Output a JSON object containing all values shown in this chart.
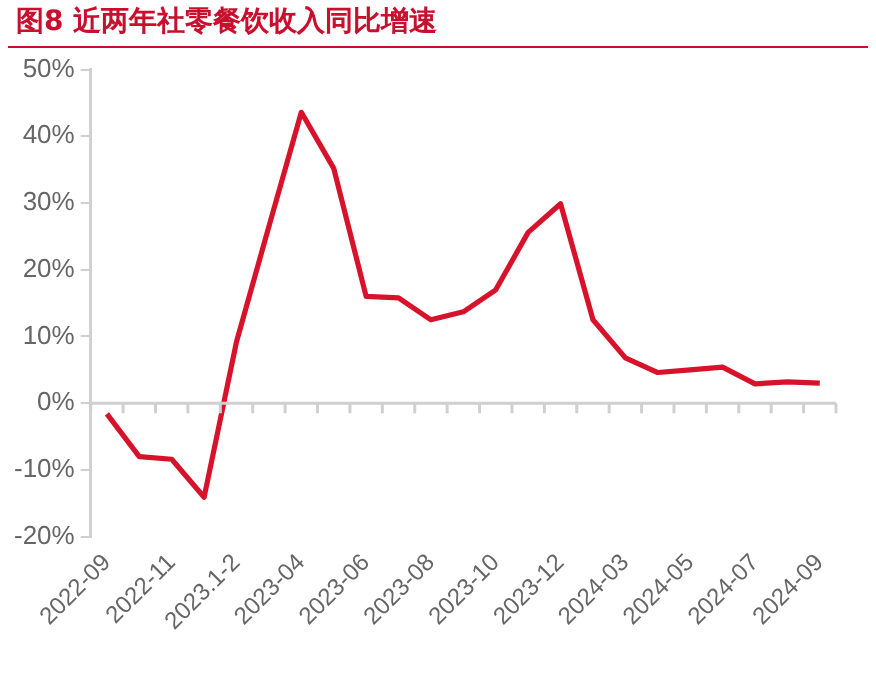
{
  "chart_data": {
    "type": "line",
    "title": "图8  近两年社零餐饮收入同比增速",
    "categories": [
      "2022-09",
      null,
      "2022-11",
      null,
      "2023.1-2",
      null,
      "2023-04",
      null,
      "2023-06",
      null,
      "2023-08",
      null,
      "2023-10",
      null,
      "2023-12",
      null,
      "2024-03",
      null,
      "2024-05",
      null,
      "2024-07",
      null,
      "2024-09"
    ],
    "series": [
      {
        "color": "#d7132c",
        "values": [
          -1.6,
          -8.0,
          -8.4,
          -14.1,
          9.2,
          26.5,
          43.6,
          35.2,
          16.0,
          15.8,
          12.5,
          13.7,
          17.0,
          25.6,
          29.9,
          12.5,
          6.8,
          4.6,
          5.0,
          5.4,
          2.9,
          3.2,
          3.0
        ]
      }
    ],
    "ylim": [
      -20,
      50
    ],
    "yticks": [
      {
        "value": -20,
        "label": "-20%"
      },
      {
        "value": -10,
        "label": "-10%"
      },
      {
        "value": 0,
        "label": "0%"
      },
      {
        "value": 10,
        "label": "10%"
      },
      {
        "value": 20,
        "label": "20%"
      },
      {
        "value": 30,
        "label": "30%"
      },
      {
        "value": 40,
        "label": "40%"
      },
      {
        "value": 50,
        "label": "50%"
      }
    ],
    "ref_lines": [
      {
        "axis": "y",
        "value": 0,
        "color": "#d0d0d0"
      }
    ],
    "grid": false,
    "legend": false,
    "marker": "none",
    "line_style": "solid"
  }
}
